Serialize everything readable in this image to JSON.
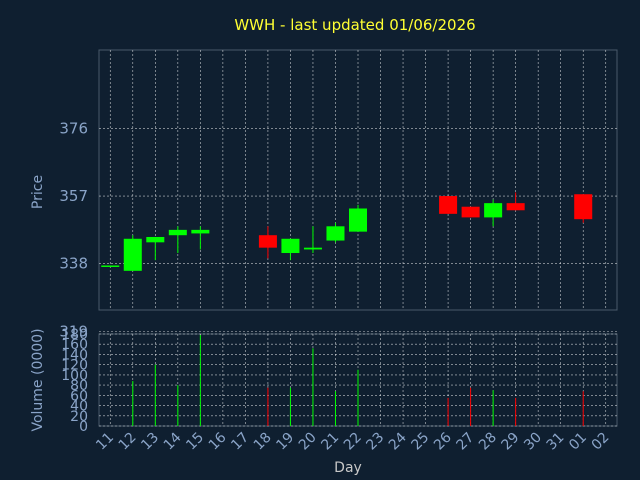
{
  "chart_data": [
    {
      "type": "candlestick",
      "title": "WWH - last updated 01/06/2026",
      "ylabel": "Price",
      "ylim": [
        325,
        398
      ],
      "yticks": [
        319,
        338,
        357,
        376
      ],
      "grid": true,
      "colors": {
        "up": "#00ff00",
        "down": "#ff0000",
        "background": "#0f1f30",
        "grid": "#ffffff",
        "axis_text": "#8aa4c8",
        "title": "#ffff33"
      },
      "candles": [
        {
          "day": "11",
          "open": 337.5,
          "close": 337.5,
          "high": 337.5,
          "low": 337.5
        },
        {
          "day": "12",
          "open": 336,
          "close": 345,
          "high": 346,
          "low": 336
        },
        {
          "day": "13",
          "open": 344,
          "close": 345.5,
          "high": 345.5,
          "low": 339
        },
        {
          "day": "14",
          "open": 346,
          "close": 347.5,
          "high": 348.5,
          "low": 341
        },
        {
          "day": "15",
          "open": 346.5,
          "close": 347.5,
          "high": 348.5,
          "low": 342
        },
        {
          "day": "18",
          "open": 346,
          "close": 342.5,
          "high": 348.5,
          "low": 339.5
        },
        {
          "day": "19",
          "open": 341,
          "close": 345,
          "high": 345,
          "low": 339
        },
        {
          "day": "20",
          "open": 342,
          "close": 342.5,
          "high": 348.5,
          "low": 341
        },
        {
          "day": "21",
          "open": 344.5,
          "close": 348.5,
          "high": 349.5,
          "low": 344
        },
        {
          "day": "22",
          "open": 347,
          "close": 353.5,
          "high": 354.5,
          "low": 347
        },
        {
          "day": "26",
          "open": 357,
          "close": 352,
          "high": 357,
          "low": 352
        },
        {
          "day": "27",
          "open": 354,
          "close": 351,
          "high": 354,
          "low": 351
        },
        {
          "day": "28",
          "open": 351,
          "close": 355,
          "high": 356,
          "low": 348.5
        },
        {
          "day": "29",
          "open": 355,
          "close": 353,
          "high": 358,
          "low": 353
        },
        {
          "day": "01",
          "open": 357.5,
          "close": 350.5,
          "high": 357.5,
          "low": 349.5
        }
      ]
    },
    {
      "type": "bar",
      "ylabel": "Volume (0000)",
      "xlabel": "Day",
      "ylim": [
        0,
        180
      ],
      "yticks": [
        0,
        20,
        40,
        60,
        80,
        100,
        120,
        140,
        160,
        180
      ],
      "categories": [
        "11",
        "12",
        "13",
        "14",
        "15",
        "16",
        "17",
        "18",
        "19",
        "20",
        "21",
        "22",
        "23",
        "24",
        "25",
        "26",
        "27",
        "28",
        "29",
        "30",
        "31",
        "01",
        "02"
      ],
      "values": [
        0,
        88,
        120,
        80,
        178,
        0,
        0,
        75,
        75,
        152,
        68,
        110,
        0,
        0,
        0,
        55,
        75,
        70,
        55,
        0,
        0,
        68,
        0
      ],
      "bar_colors": [
        "",
        "#00ff00",
        "#00ff00",
        "#00ff00",
        "#00ff00",
        "",
        "",
        "#ff0000",
        "#00ff00",
        "#00ff00",
        "#00ff00",
        "#00ff00",
        "",
        "",
        "",
        "#ff0000",
        "#ff0000",
        "#00ff00",
        "#ff0000",
        "",
        "",
        "#ff0000",
        ""
      ]
    }
  ]
}
